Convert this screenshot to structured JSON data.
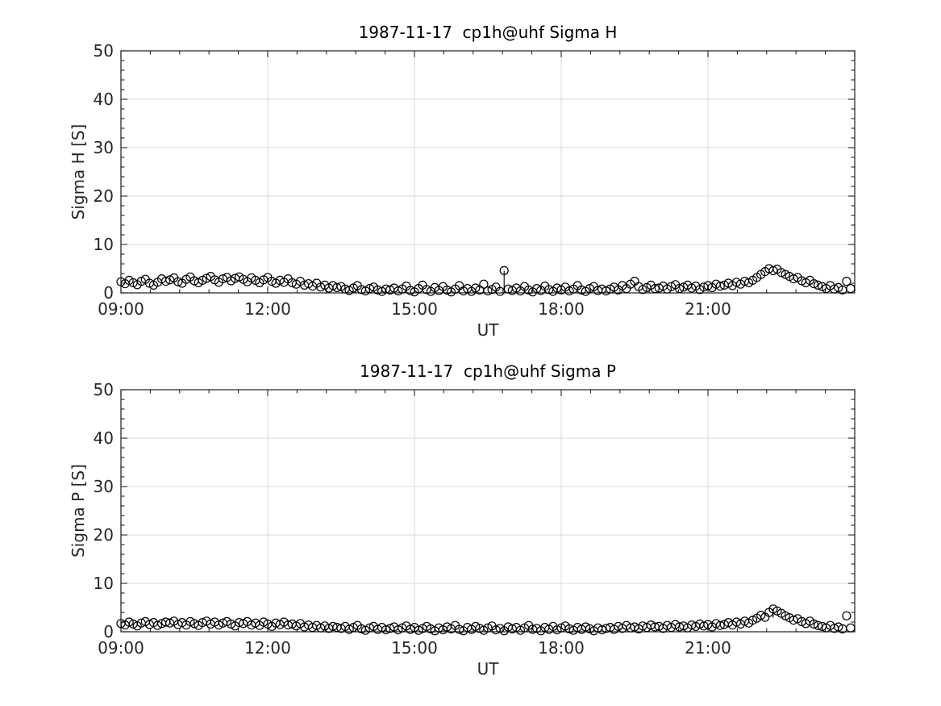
{
  "page": {
    "background": "#ffffff"
  },
  "colors": {
    "marker": "#000000",
    "axis": "#1a1a1a",
    "grid": "#d9d9d9",
    "tick": "#262626",
    "text": "#262626"
  },
  "chart_data": [
    {
      "type": "scatter",
      "title": "1987-11-17  cp1h@uhf Sigma H",
      "xlabel": "UT",
      "ylabel": "Sigma H [S]",
      "xlim": [
        9,
        24
      ],
      "ylim": [
        0,
        50
      ],
      "x_major_ticks": [
        9,
        12,
        15,
        18,
        21,
        24
      ],
      "x_tick_labels": [
        "09:00",
        "12:00",
        "15:00",
        "18:00",
        "21:00",
        ""
      ],
      "x_minor_step": 0.6,
      "y_major_ticks": [
        0,
        10,
        20,
        30,
        40,
        50
      ],
      "y_tick_labels": [
        "0",
        "10",
        "20",
        "30",
        "40",
        "50"
      ],
      "y_minor_step": 2,
      "grid": "major",
      "legend": "none",
      "marker": "open-circle",
      "x_start_hour": 9,
      "x_step_minutes": 5,
      "y_values": [
        2.3,
        1.9,
        2.6,
        2.1,
        1.7,
        2.4,
        2.8,
        2.0,
        1.6,
        2.2,
        2.9,
        2.4,
        2.7,
        3.1,
        2.3,
        2.0,
        2.8,
        3.3,
        2.5,
        2.1,
        2.6,
        3.0,
        3.4,
        2.7,
        2.2,
        2.9,
        3.2,
        2.5,
        3.0,
        3.3,
        2.8,
        2.3,
        3.1,
        2.6,
        2.1,
        2.7,
        3.2,
        2.4,
        2.0,
        2.6,
        2.2,
        2.9,
        2.1,
        1.8,
        2.4,
        1.6,
        1.9,
        1.4,
        2.0,
        1.2,
        1.6,
        1.0,
        1.5,
        1.1,
        1.3,
        0.8,
        0.5,
        1.0,
        1.5,
        0.7,
        0.4,
        0.9,
        1.2,
        0.6,
        0.3,
        0.8,
        0.6,
        1.0,
        0.4,
        0.8,
        1.4,
        0.5,
        0.2,
        0.9,
        1.6,
        0.7,
        0.3,
        1.1,
        0.5,
        1.3,
        0.6,
        0.2,
        0.8,
        1.5,
        0.4,
        0.9,
        0.3,
        1.0,
        0.6,
        1.8,
        0.4,
        0.7,
        1.2,
        0.3,
        4.6,
        0.8,
        0.5,
        1.0,
        0.4,
        1.3,
        0.6,
        0.2,
        0.9,
        0.5,
        1.4,
        0.7,
        0.3,
        1.0,
        0.6,
        1.2,
        0.4,
        0.8,
        1.5,
        0.6,
        0.3,
        0.9,
        1.3,
        0.5,
        0.8,
        0.4,
        0.8,
        1.2,
        0.6,
        1.5,
        0.9,
        1.8,
        2.4,
        1.3,
        0.7,
        1.1,
        1.6,
        0.9,
        1.0,
        1.4,
        0.8,
        1.3,
        1.7,
        0.9,
        1.2,
        1.6,
        1.0,
        1.4,
        0.7,
        1.2,
        1.5,
        1.1,
        1.8,
        1.4,
        1.6,
        2.0,
        1.5,
        2.2,
        1.8,
        2.4,
        2.1,
        2.6,
        3.2,
        3.8,
        4.4,
        5.0,
        4.6,
        4.9,
        4.2,
        3.8,
        3.4,
        2.9,
        3.2,
        2.5,
        2.1,
        2.6,
        1.9,
        1.6,
        1.3,
        0.9,
        1.5,
        0.8,
        1.1,
        0.6,
        2.4,
        0.9
      ],
      "error_bars": [
        {
          "x_hour": 16.8333,
          "y_low": 0.7,
          "y_high": 4.6
        }
      ]
    },
    {
      "type": "scatter",
      "title": "1987-11-17  cp1h@uhf Sigma P",
      "xlabel": "UT",
      "ylabel": "Sigma P [S]",
      "xlim": [
        9,
        24
      ],
      "ylim": [
        0,
        50
      ],
      "x_major_ticks": [
        9,
        12,
        15,
        18,
        21,
        24
      ],
      "x_tick_labels": [
        "09:00",
        "12:00",
        "15:00",
        "18:00",
        "21:00",
        ""
      ],
      "x_minor_step": 0.6,
      "y_major_ticks": [
        0,
        10,
        20,
        30,
        40,
        50
      ],
      "y_tick_labels": [
        "0",
        "10",
        "20",
        "30",
        "40",
        "50"
      ],
      "y_minor_step": 2,
      "grid": "major",
      "legend": "none",
      "marker": "open-circle",
      "x_start_hour": 9,
      "x_step_minutes": 5,
      "y_values": [
        1.7,
        1.4,
        2.0,
        1.6,
        1.2,
        1.8,
        2.1,
        1.5,
        1.9,
        1.3,
        1.7,
        2.0,
        1.8,
        2.2,
        1.5,
        1.9,
        1.4,
        2.1,
        1.7,
        1.3,
        1.9,
        2.2,
        1.6,
        2.0,
        1.4,
        1.8,
        2.1,
        1.6,
        1.2,
        1.9,
        1.7,
        2.1,
        1.4,
        1.8,
        1.3,
        2.0,
        1.6,
        1.1,
        1.8,
        1.5,
        2.0,
        1.4,
        1.6,
        1.2,
        1.7,
        1.0,
        1.4,
        0.9,
        1.3,
        0.8,
        1.2,
        0.7,
        1.1,
        0.9,
        0.7,
        1.1,
        0.5,
        0.9,
        1.3,
        0.6,
        0.3,
        0.8,
        1.1,
        0.5,
        0.9,
        0.4,
        0.7,
        1.0,
        0.4,
        0.8,
        1.2,
        0.5,
        0.9,
        0.3,
        0.7,
        1.1,
        0.6,
        0.2,
        0.8,
        0.4,
        1.0,
        0.6,
        1.3,
        0.5,
        0.2,
        0.9,
        0.5,
        1.1,
        0.7,
        0.3,
        0.8,
        1.2,
        0.4,
        0.7,
        0.2,
        1.0,
        0.6,
        0.9,
        0.3,
        0.8,
        1.3,
        0.5,
        0.7,
        0.2,
        0.9,
        0.5,
        1.1,
        0.4,
        0.8,
        1.2,
        0.6,
        0.3,
        0.9,
        0.5,
        1.0,
        0.6,
        0.2,
        0.8,
        0.4,
        0.7,
        0.9,
        0.5,
        1.1,
        0.7,
        1.3,
        0.8,
        1.0,
        0.6,
        1.2,
        0.9,
        1.4,
        1.0,
        1.1,
        0.7,
        1.3,
        0.9,
        1.5,
        1.0,
        1.2,
        0.8,
        1.4,
        1.1,
        1.6,
        1.2,
        1.5,
        1.0,
        1.7,
        1.3,
        1.5,
        1.9,
        1.4,
        2.0,
        1.6,
        2.2,
        1.8,
        2.4,
        2.8,
        3.4,
        3.0,
        4.0,
        4.7,
        4.3,
        3.8,
        3.3,
        2.9,
        2.4,
        2.7,
        2.1,
        1.7,
        2.2,
        1.6,
        1.3,
        1.1,
        0.8,
        1.3,
        0.7,
        1.0,
        0.6,
        3.3,
        0.8
      ],
      "error_bars": [
        {
          "x_hour": 22.3333,
          "y_low": 2.9,
          "y_high": 4.7
        }
      ]
    }
  ]
}
